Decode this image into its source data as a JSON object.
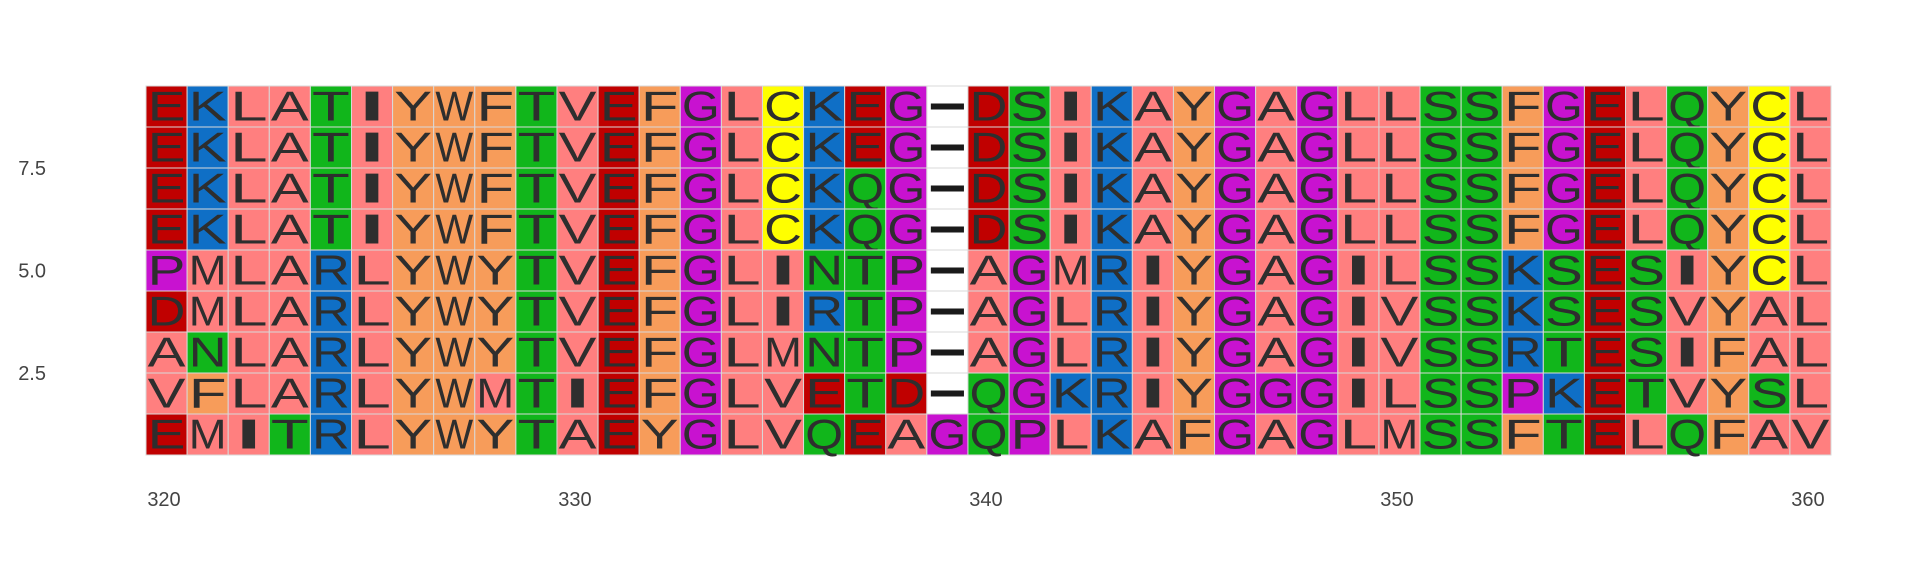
{
  "chart_data": {
    "type": "heatmap",
    "title": "",
    "xlabel": "",
    "ylabel": "",
    "x_start": 320,
    "xlim": [
      320,
      360
    ],
    "ylim": [
      0.5,
      9.5
    ],
    "x_ticks": [
      {
        "value": 320,
        "label": "320"
      },
      {
        "value": 330,
        "label": "330"
      },
      {
        "value": 340,
        "label": "340"
      },
      {
        "value": 350,
        "label": "350"
      },
      {
        "value": 360,
        "label": "360"
      }
    ],
    "y_ticks": [
      {
        "value": 2.5,
        "label": "2.5"
      },
      {
        "value": 5.0,
        "label": "5.0"
      },
      {
        "value": 7.5,
        "label": "7.5"
      }
    ],
    "sequences": [
      "EKLATIYWFTVEFGLCKEG-DSIKAYGAGLLSSFGELQYCL",
      "EKLATIYWFTVEFGLCKEG-DSIKAYGAGLLSSFGELQYCL",
      "EKLATIYWFTVEFGLCKQG-DSIKAYGAGLLSSFGELQYCL",
      "EKLATIYWFTVEFGLCKQG-DSIKAYGAGLLSSFGELQYCL",
      "PMLARLYWYTVEFGLINTP-AGMRIYGAGILSSKSESIYCL",
      "DMLARLYWYTVEFGLIRTP-AGLRIYGAGIVSSKSESVYAL",
      "ANLARLYWYTVEFGLMNTP-AGLRIYGAGIVSSRTESIFAL",
      "VFLARLYWMTIEFGLVETD-QGKRIYGGGILSSPKETVYSL",
      "EMITRLYWYTAEYGLVQEAGQPLKAFGAGLMSSFTELQFAV"
    ],
    "residue_colors": {
      "D": "#c00000",
      "E": "#c00000",
      "K": "#0f6fc6",
      "R": "#0f6fc6",
      "H": "#0f6fc6",
      "L": "#ff7f7f",
      "I": "#ff7f7f",
      "V": "#ff7f7f",
      "A": "#ff7f7f",
      "M": "#ff7f7f",
      "F": "#f79c5a",
      "W": "#f79c5a",
      "Y": "#f79c5a",
      "S": "#11b61b",
      "T": "#11b61b",
      "N": "#11b61b",
      "Q": "#11b61b",
      "G": "#c812d0",
      "P": "#c812d0",
      "C": "#ffff00",
      "-": "#ffffff"
    },
    "letter_color": "#2e2e2e",
    "grid": true
  }
}
